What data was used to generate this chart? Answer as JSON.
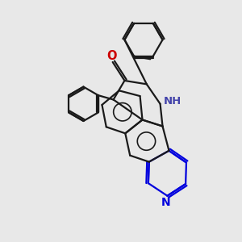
{
  "bg_color": "#e8e8e8",
  "bond_color": "#1a1a1a",
  "n_color": "#0000dd",
  "o_color": "#cc0000",
  "nh_color": "#4444aa",
  "line_width": 1.6,
  "figsize": [
    3.0,
    3.0
  ],
  "dpi": 100,
  "xlim": [
    0,
    10
  ],
  "ylim": [
    0,
    10
  ]
}
